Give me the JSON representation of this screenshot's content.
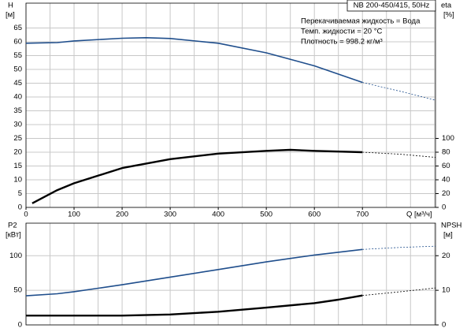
{
  "chart_data": [
    {
      "type": "line",
      "title": "NB 200-450/415, 50Hz",
      "annotations": [
        "Перекачиваемая жидкость = Вода",
        "Темп. жидкости = 20 °C",
        "Плотность = 998.2 кг/м³"
      ],
      "ylabel": "H",
      "yunit": "[м]",
      "y2label": "eta",
      "y2unit": "[%]",
      "xlabel": "Q [м³/ч]",
      "xlim": [
        0,
        852
      ],
      "xticks": [
        0,
        100,
        200,
        300,
        400,
        500,
        600,
        700
      ],
      "xgrid": [
        0,
        50,
        100,
        150,
        200,
        250,
        300,
        350,
        400,
        450,
        500,
        550,
        600,
        650,
        700,
        750,
        800,
        850
      ],
      "ylim": [
        0,
        74
      ],
      "yticks": [
        0,
        5,
        10,
        15,
        20,
        25,
        30,
        35,
        40,
        45,
        50,
        55,
        60,
        65
      ],
      "y2lim": [
        0,
        296
      ],
      "y2ticks": [
        0,
        20,
        40,
        60,
        80,
        100
      ],
      "grid": true,
      "series": [
        {
          "color": "#1f4e8c",
          "axis": "y",
          "dashed": false,
          "width": 1.6,
          "x": [
            0,
            65,
            100,
            200,
            250,
            300,
            400,
            500,
            600,
            700
          ],
          "values": [
            59.5,
            59.7,
            60.3,
            61.3,
            61.5,
            61.2,
            59.5,
            56,
            51.3,
            45.3
          ]
        },
        {
          "color": "#1f4e8c",
          "axis": "y",
          "dashed": true,
          "width": 0.8,
          "x": [
            700,
            780,
            860
          ],
          "values": [
            45.3,
            42,
            38.5
          ]
        },
        {
          "color": "#000000",
          "axis": "y2",
          "dashed": false,
          "width": 2.4,
          "x": [
            13,
            65,
            100,
            200,
            300,
            400,
            500,
            550,
            600,
            700
          ],
          "values": [
            6,
            25,
            35,
            57,
            70,
            78,
            82,
            83.4,
            82,
            80
          ]
        },
        {
          "color": "#000000",
          "axis": "y2",
          "dashed": true,
          "width": 0.8,
          "x": [
            700,
            780,
            860
          ],
          "values": [
            80,
            77,
            72
          ]
        }
      ]
    },
    {
      "type": "line",
      "ylabel": "P2",
      "yunit": "[кВт]",
      "y2label": "NPSH",
      "y2unit": "[м]",
      "xlim": [
        0,
        852
      ],
      "xgrid": [
        0,
        50,
        100,
        150,
        200,
        250,
        300,
        350,
        400,
        450,
        500,
        550,
        600,
        650,
        700,
        750,
        800,
        850
      ],
      "ylim": [
        0,
        147
      ],
      "yticks": [
        0,
        50,
        100
      ],
      "y2lim": [
        0,
        29.4
      ],
      "y2ticks": [
        0,
        10,
        20
      ],
      "grid": true,
      "series": [
        {
          "color": "#1f4e8c",
          "axis": "y",
          "dashed": false,
          "width": 1.6,
          "x": [
            0,
            65,
            100,
            200,
            300,
            400,
            500,
            600,
            700
          ],
          "values": [
            42,
            45,
            48,
            58,
            69,
            80,
            91,
            101,
            109
          ]
        },
        {
          "color": "#1f4e8c",
          "axis": "y",
          "dashed": true,
          "width": 0.8,
          "x": [
            700,
            780,
            860
          ],
          "values": [
            109,
            112,
            114
          ]
        },
        {
          "color": "#000000",
          "axis": "y2",
          "dashed": false,
          "width": 2.4,
          "x": [
            0,
            65,
            200,
            300,
            400,
            500,
            600,
            650,
            700
          ],
          "values": [
            2.7,
            2.7,
            2.7,
            3,
            3.8,
            5,
            6.3,
            7.3,
            8.5
          ]
        },
        {
          "color": "#000000",
          "axis": "y2",
          "dashed": true,
          "width": 0.8,
          "x": [
            700,
            780,
            860
          ],
          "values": [
            8.5,
            9.6,
            10.8
          ]
        }
      ]
    }
  ]
}
